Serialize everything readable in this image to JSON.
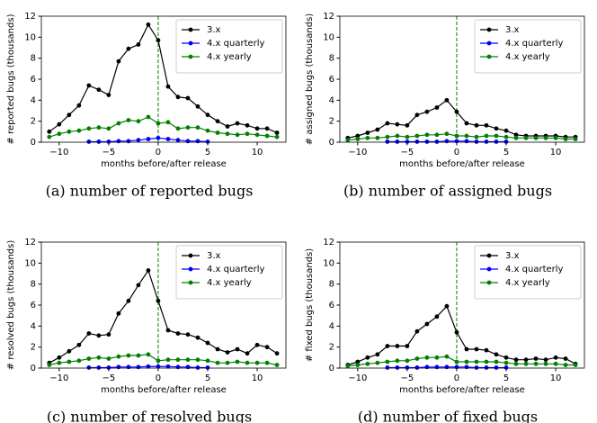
{
  "chart_data": [
    {
      "type": "line",
      "caption": "(a) number of reported bugs",
      "xlabel": "months before/after release",
      "ylabel": "# reported bugs (thousands)",
      "x": [
        -11,
        -10,
        -9,
        -8,
        -7,
        -6,
        -5,
        -4,
        -3,
        -2,
        -1,
        0,
        1,
        2,
        3,
        4,
        5,
        6,
        7,
        8,
        9,
        10,
        11,
        12
      ],
      "series": [
        {
          "name": "3.x",
          "color": "#000000",
          "values": [
            1.0,
            1.7,
            2.6,
            3.5,
            5.4,
            5.0,
            4.5,
            7.7,
            8.9,
            9.3,
            11.2,
            9.7,
            5.3,
            4.3,
            4.2,
            3.4,
            2.6,
            2.0,
            1.5,
            1.8,
            1.6,
            1.3,
            1.3,
            0.9
          ]
        },
        {
          "name": "4.x quarterly",
          "color": "#0000ff",
          "values": [
            null,
            null,
            null,
            null,
            0.05,
            0.05,
            0.05,
            0.1,
            0.1,
            0.2,
            0.3,
            0.4,
            0.3,
            0.2,
            0.1,
            0.1,
            0.05,
            null,
            null,
            null,
            null,
            null,
            null,
            null
          ]
        },
        {
          "name": "4.x yearly",
          "color": "#008000",
          "values": [
            0.5,
            0.8,
            1.0,
            1.1,
            1.3,
            1.4,
            1.3,
            1.8,
            2.1,
            2.0,
            2.4,
            1.8,
            1.9,
            1.3,
            1.4,
            1.4,
            1.1,
            0.9,
            0.8,
            0.7,
            0.8,
            0.7,
            0.6,
            0.5
          ]
        }
      ],
      "xlim": [
        -11.8,
        12.9
      ],
      "ylim": [
        0,
        12
      ],
      "xticks": [
        {
          "value": -10,
          "label": "−10"
        },
        {
          "value": -5,
          "label": "−5"
        },
        0,
        5,
        10
      ],
      "yticks": [
        0,
        2,
        4,
        6,
        8,
        10,
        12
      ],
      "vline": 0,
      "legend": "upper right"
    },
    {
      "type": "line",
      "caption": "(b) number of assigned bugs",
      "xlabel": "months before/after release",
      "ylabel": "# assigned bugs (thousands)",
      "x": [
        -11,
        -10,
        -9,
        -8,
        -7,
        -6,
        -5,
        -4,
        -3,
        -2,
        -1,
        0,
        1,
        2,
        3,
        4,
        5,
        6,
        7,
        8,
        9,
        10,
        11,
        12
      ],
      "series": [
        {
          "name": "3.x",
          "color": "#000000",
          "values": [
            0.4,
            0.6,
            0.9,
            1.2,
            1.8,
            1.7,
            1.6,
            2.6,
            2.9,
            3.3,
            4.0,
            2.9,
            1.8,
            1.6,
            1.6,
            1.3,
            1.1,
            0.7,
            0.6,
            0.6,
            0.6,
            0.6,
            0.5,
            0.5
          ]
        },
        {
          "name": "4.x quarterly",
          "color": "#0000ff",
          "values": [
            null,
            null,
            null,
            null,
            0.05,
            0.05,
            0.05,
            0.05,
            0.05,
            0.05,
            0.1,
            0.1,
            0.1,
            0.05,
            0.05,
            0.05,
            0.05,
            null,
            null,
            null,
            null,
            null,
            null,
            null
          ]
        },
        {
          "name": "4.x yearly",
          "color": "#008000",
          "values": [
            0.2,
            0.3,
            0.4,
            0.4,
            0.5,
            0.6,
            0.5,
            0.6,
            0.7,
            0.7,
            0.8,
            0.6,
            0.6,
            0.5,
            0.6,
            0.6,
            0.5,
            0.4,
            0.4,
            0.4,
            0.4,
            0.4,
            0.3,
            0.3
          ]
        }
      ],
      "xlim": [
        -11.8,
        12.9
      ],
      "ylim": [
        0,
        12
      ],
      "xticks": [
        {
          "value": -10,
          "label": "−10"
        },
        {
          "value": -5,
          "label": "−5"
        },
        0,
        5,
        10
      ],
      "yticks": [
        0,
        2,
        4,
        6,
        8,
        10,
        12
      ],
      "vline": 0,
      "legend": "upper right"
    },
    {
      "type": "line",
      "caption": "(c) number of resolved bugs",
      "xlabel": "months before/after release",
      "ylabel": "# resolved bugs (thousands)",
      "x": [
        -11,
        -10,
        -9,
        -8,
        -7,
        -6,
        -5,
        -4,
        -3,
        -2,
        -1,
        0,
        1,
        2,
        3,
        4,
        5,
        6,
        7,
        8,
        9,
        10,
        11,
        12
      ],
      "series": [
        {
          "name": "3.x",
          "color": "#000000",
          "values": [
            0.5,
            1.0,
            1.6,
            2.2,
            3.3,
            3.1,
            3.2,
            5.2,
            6.4,
            7.9,
            9.3,
            6.4,
            3.6,
            3.3,
            3.2,
            2.9,
            2.4,
            1.8,
            1.5,
            1.8,
            1.4,
            2.2,
            2.0,
            1.4
          ]
        },
        {
          "name": "4.x quarterly",
          "color": "#0000ff",
          "values": [
            null,
            null,
            null,
            null,
            0.05,
            0.05,
            0.05,
            0.1,
            0.1,
            0.1,
            0.15,
            0.15,
            0.15,
            0.1,
            0.1,
            0.05,
            0.05,
            null,
            null,
            null,
            null,
            null,
            null,
            null
          ]
        },
        {
          "name": "4.x yearly",
          "color": "#008000",
          "values": [
            0.3,
            0.5,
            0.6,
            0.7,
            0.9,
            1.0,
            0.9,
            1.1,
            1.2,
            1.2,
            1.3,
            0.7,
            0.8,
            0.8,
            0.8,
            0.8,
            0.7,
            0.5,
            0.5,
            0.6,
            0.5,
            0.5,
            0.5,
            0.3
          ]
        }
      ],
      "xlim": [
        -11.8,
        12.9
      ],
      "ylim": [
        0,
        12
      ],
      "xticks": [
        {
          "value": -10,
          "label": "−10"
        },
        {
          "value": -5,
          "label": "−5"
        },
        0,
        5,
        10
      ],
      "yticks": [
        0,
        2,
        4,
        6,
        8,
        10,
        12
      ],
      "vline": 0,
      "legend": "upper right"
    },
    {
      "type": "line",
      "caption": "(d) number of fixed bugs",
      "xlabel": "months before/after release",
      "ylabel": "# fixed bugs (thousands)",
      "x": [
        -11,
        -10,
        -9,
        -8,
        -7,
        -6,
        -5,
        -4,
        -3,
        -2,
        -1,
        0,
        1,
        2,
        3,
        4,
        5,
        6,
        7,
        8,
        9,
        10,
        11,
        12
      ],
      "series": [
        {
          "name": "3.x",
          "color": "#000000",
          "values": [
            0.3,
            0.6,
            1.0,
            1.3,
            2.1,
            2.1,
            2.1,
            3.5,
            4.2,
            4.9,
            5.9,
            3.4,
            1.8,
            1.8,
            1.7,
            1.3,
            1.0,
            0.8,
            0.8,
            0.9,
            0.8,
            1.0,
            0.9,
            0.4
          ]
        },
        {
          "name": "4.x quarterly",
          "color": "#0000ff",
          "values": [
            null,
            null,
            null,
            null,
            0.05,
            0.05,
            0.05,
            0.05,
            0.1,
            0.1,
            0.1,
            0.1,
            0.1,
            0.05,
            0.05,
            0.05,
            0.05,
            null,
            null,
            null,
            null,
            null,
            null,
            null
          ]
        },
        {
          "name": "4.x yearly",
          "color": "#008000",
          "values": [
            0.2,
            0.3,
            0.4,
            0.5,
            0.6,
            0.7,
            0.7,
            0.9,
            1.0,
            1.0,
            1.1,
            0.6,
            0.6,
            0.6,
            0.6,
            0.6,
            0.5,
            0.4,
            0.4,
            0.4,
            0.4,
            0.4,
            0.3,
            0.3
          ]
        }
      ],
      "xlim": [
        -11.8,
        12.9
      ],
      "ylim": [
        0,
        12
      ],
      "xticks": [
        {
          "value": -10,
          "label": "−10"
        },
        {
          "value": -5,
          "label": "−5"
        },
        0,
        5,
        10
      ],
      "yticks": [
        0,
        2,
        4,
        6,
        8,
        10,
        12
      ],
      "vline": 0,
      "legend": "upper right"
    }
  ]
}
